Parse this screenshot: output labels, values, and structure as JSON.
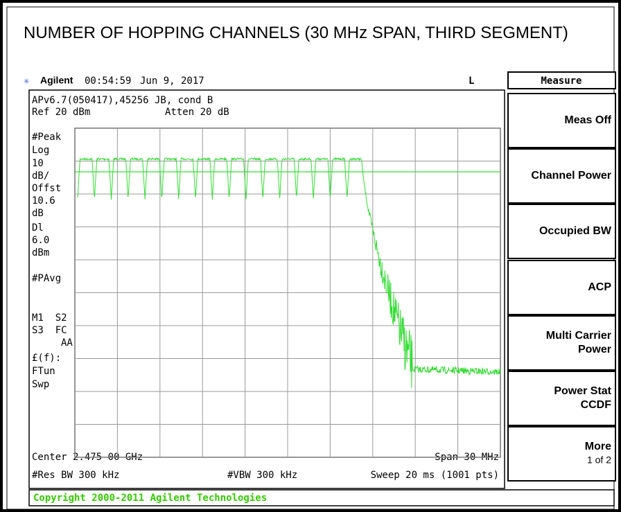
{
  "title": "NUMBER OF HOPPING CHANNELS (30 MHz SPAN, THIRD SEGMENT)",
  "status": {
    "brand": "Agilent",
    "time": "00:54:59",
    "date": "Jun 9, 2017",
    "flag": "L"
  },
  "info": {
    "line1": "APv6.7(050417),45256 JB, cond B",
    "ref": "Ref 20 dBm",
    "atten": "Atten 20 dB"
  },
  "side_labels": [
    "#Peak",
    "Log",
    "10",
    "dB/",
    "Offst",
    "10.6",
    "dB",
    "Dl",
    "6.0",
    "dBm",
    "#PAvg",
    "M1  S2",
    "S3  FC",
    "AA",
    "£(f):",
    "FTun",
    "Swp"
  ],
  "footer": {
    "center": "Center 2.475 00 GHz",
    "span": "Span 30 MHz",
    "rbw": "#Res BW 300 kHz",
    "vbw": "#VBW 300 kHz",
    "sweep": "Sweep 20 ms (1001 pts)"
  },
  "softkeys": {
    "header": "Measure",
    "keys": [
      [
        "Meas Off"
      ],
      [
        "Channel Power"
      ],
      [
        "Occupied BW"
      ],
      [
        "ACP"
      ],
      [
        "Multi Carrier",
        "Power"
      ],
      [
        "Power Stat",
        "CCDF"
      ],
      [
        "More",
        "1 of 2"
      ]
    ]
  },
  "copyright": "Copyright 2000-2011 Agilent Technologies"
}
